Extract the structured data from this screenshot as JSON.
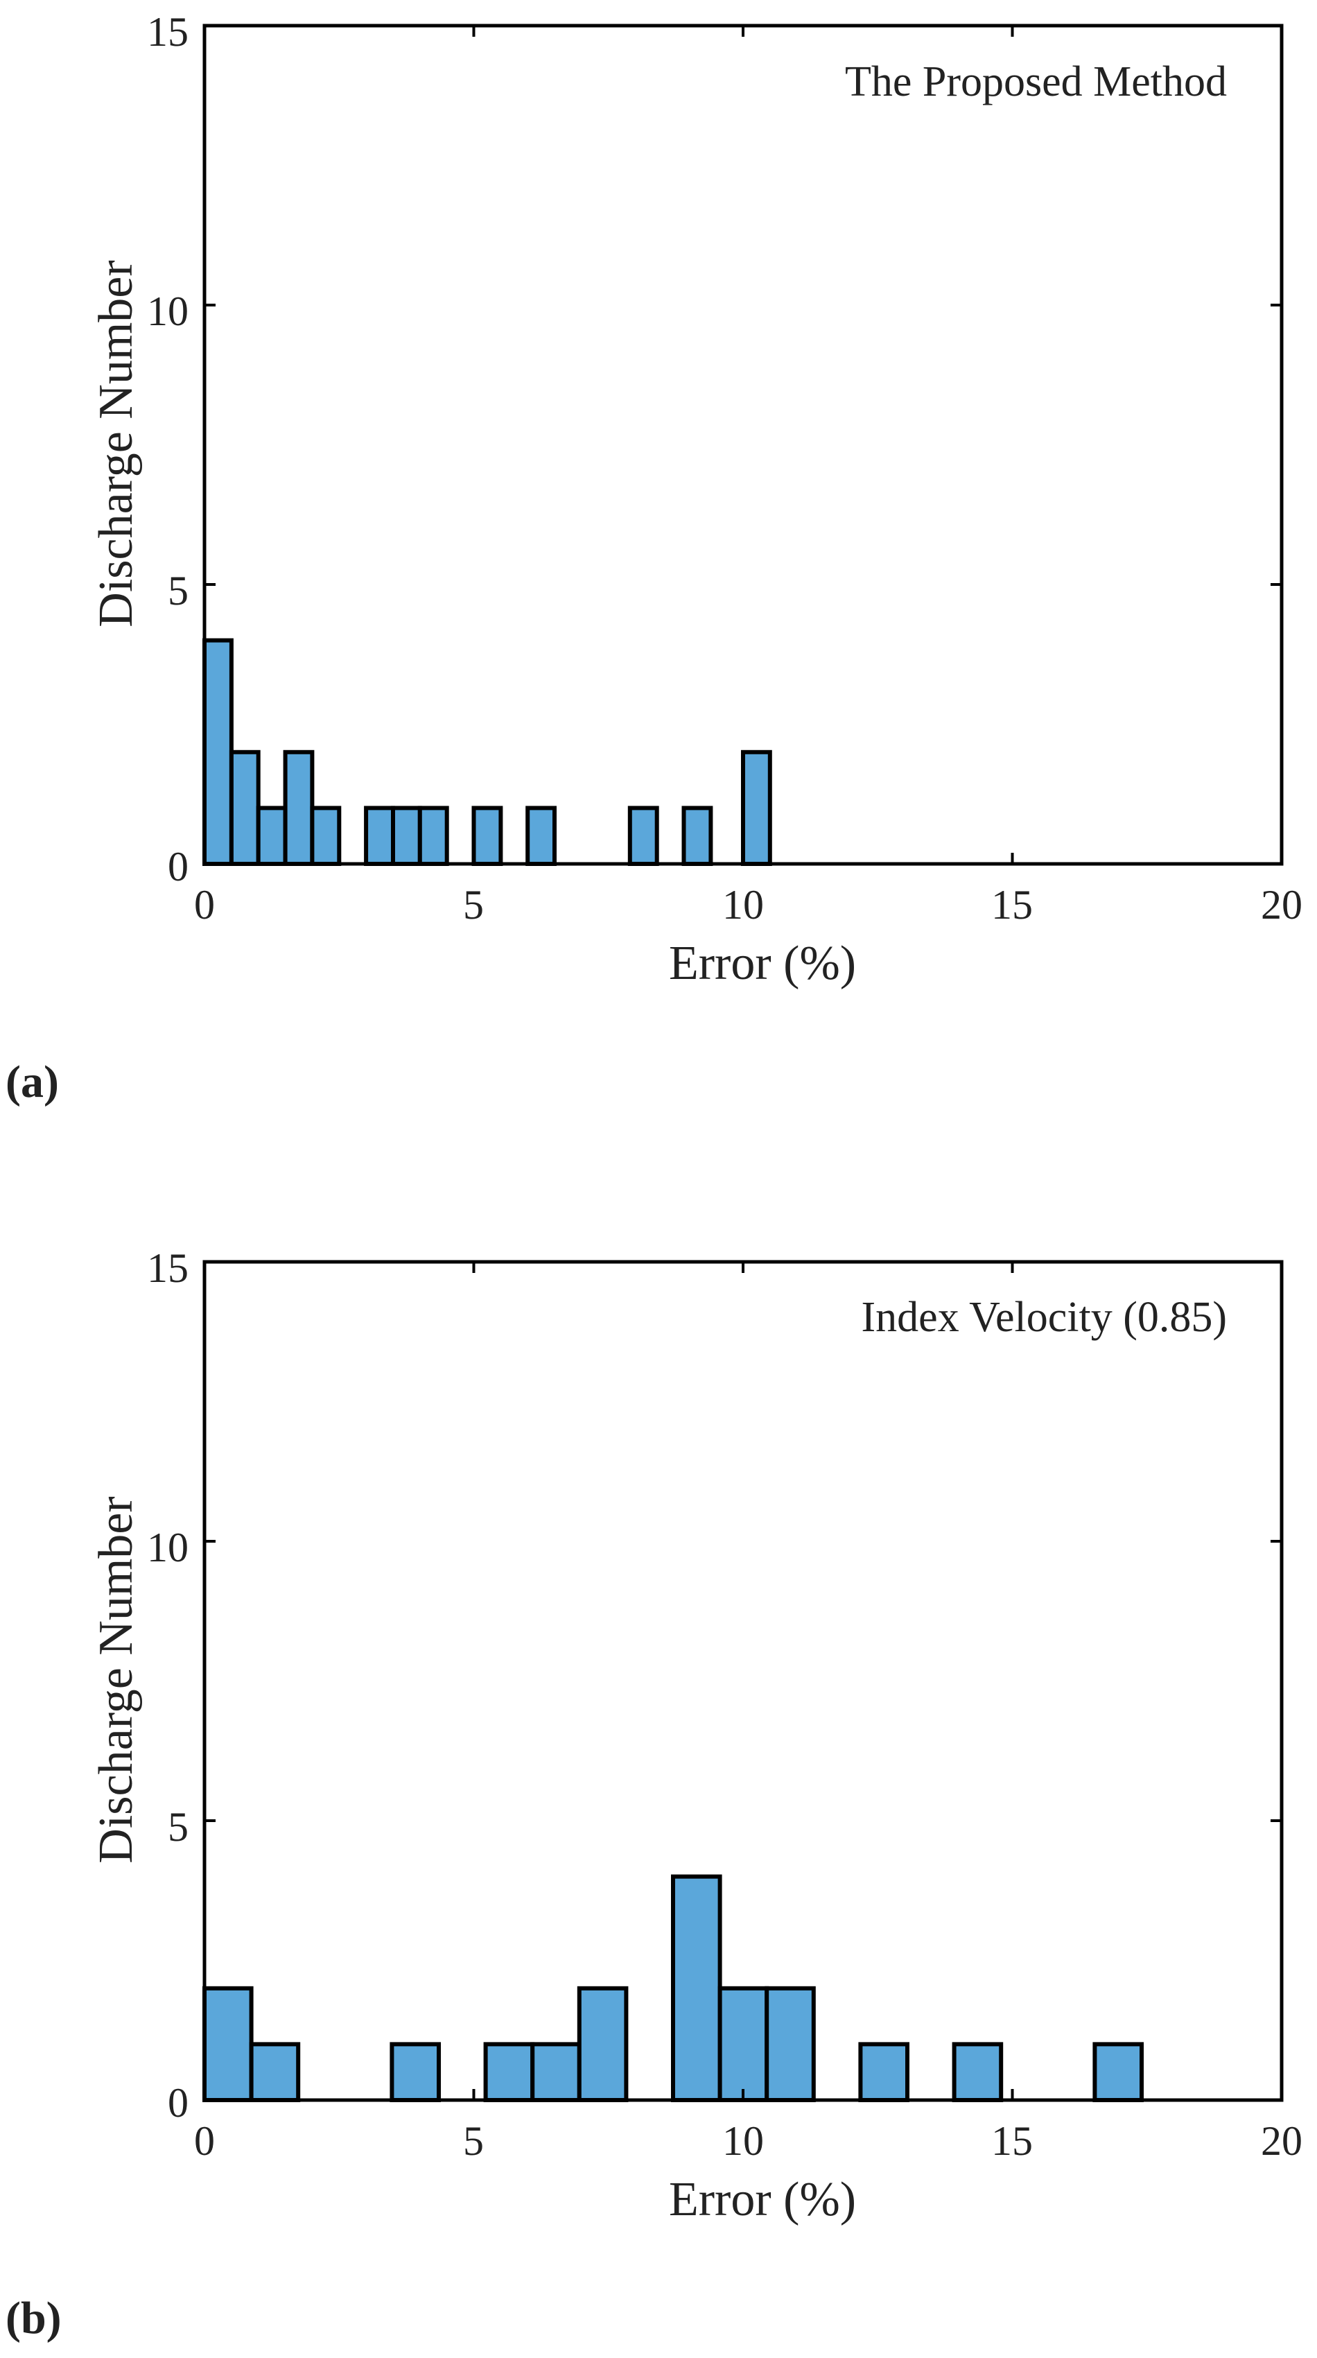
{
  "chart_data": [
    {
      "type": "bar",
      "panel_label": "(a)",
      "annotation": "The Proposed Method",
      "xlabel": "Error (%)",
      "ylabel": "Discharge Number",
      "xlim": [
        0,
        20
      ],
      "ylim": [
        0,
        15
      ],
      "xticks": [
        "0",
        "5",
        "10",
        "15",
        "20"
      ],
      "yticks": [
        "0",
        "5",
        "10",
        "15"
      ],
      "bin_width": 0.5,
      "bars": [
        {
          "start": 0.0,
          "count": 4
        },
        {
          "start": 0.5,
          "count": 2
        },
        {
          "start": 1.0,
          "count": 1
        },
        {
          "start": 1.5,
          "count": 2
        },
        {
          "start": 2.0,
          "count": 1
        },
        {
          "start": 3.0,
          "count": 1
        },
        {
          "start": 3.5,
          "count": 1
        },
        {
          "start": 4.0,
          "count": 1
        },
        {
          "start": 5.0,
          "count": 1
        },
        {
          "start": 6.0,
          "count": 1
        },
        {
          "start": 7.9,
          "count": 1
        },
        {
          "start": 8.9,
          "count": 1
        },
        {
          "start": 10.0,
          "count": 2
        }
      ]
    },
    {
      "type": "bar",
      "panel_label": "(b)",
      "annotation": "Index Velocity (0.85)",
      "xlabel": "Error (%)",
      "ylabel": "Discharge Number",
      "xlim": [
        0,
        20
      ],
      "ylim": [
        0,
        15
      ],
      "xticks": [
        "0",
        "5",
        "10",
        "15",
        "20"
      ],
      "yticks": [
        "0",
        "5",
        "10",
        "15"
      ],
      "bin_width": 0.87,
      "bars": [
        {
          "start": 0.0,
          "count": 2
        },
        {
          "start": 0.87,
          "count": 1
        },
        {
          "start": 3.48,
          "count": 1
        },
        {
          "start": 5.22,
          "count": 1
        },
        {
          "start": 6.09,
          "count": 1
        },
        {
          "start": 6.96,
          "count": 2
        },
        {
          "start": 8.7,
          "count": 4
        },
        {
          "start": 9.57,
          "count": 2
        },
        {
          "start": 10.44,
          "count": 2
        },
        {
          "start": 12.18,
          "count": 1
        },
        {
          "start": 13.92,
          "count": 1
        },
        {
          "start": 16.53,
          "count": 1
        }
      ]
    }
  ]
}
